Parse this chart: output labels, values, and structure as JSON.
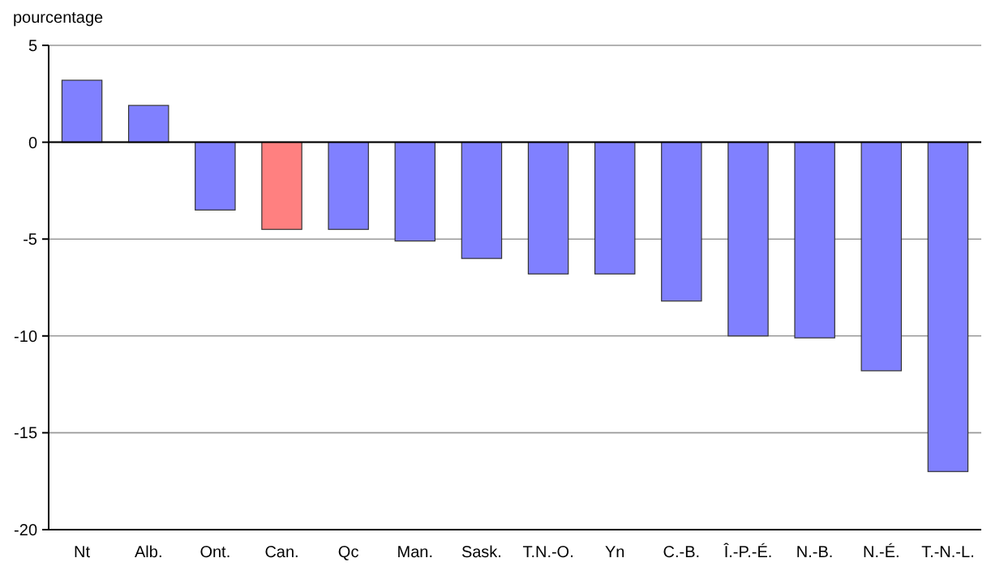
{
  "chart_data": {
    "type": "bar",
    "ylabel": "pourcentage",
    "categories": [
      "Nt",
      "Alb.",
      "Ont.",
      "Can.",
      "Qc",
      "Man.",
      "Sask.",
      "T.N.-O.",
      "Yn",
      "C.-B.",
      "Î.-P.-É.",
      "N.-B.",
      "N.-É.",
      "T.-N.-L."
    ],
    "values": [
      3.2,
      1.9,
      -3.5,
      -4.5,
      -4.5,
      -5.1,
      -6.0,
      -6.8,
      -6.8,
      -8.2,
      -10.0,
      -10.1,
      -11.8,
      -17.0
    ],
    "colors": [
      "#8080ff",
      "#8080ff",
      "#8080ff",
      "#ff8080",
      "#8080ff",
      "#8080ff",
      "#8080ff",
      "#8080ff",
      "#8080ff",
      "#8080ff",
      "#8080ff",
      "#8080ff",
      "#8080ff",
      "#8080ff"
    ],
    "ylim": [
      -20,
      5
    ],
    "yticks": [
      5,
      0,
      -5,
      -10,
      -15,
      -20
    ],
    "grid": "y"
  }
}
